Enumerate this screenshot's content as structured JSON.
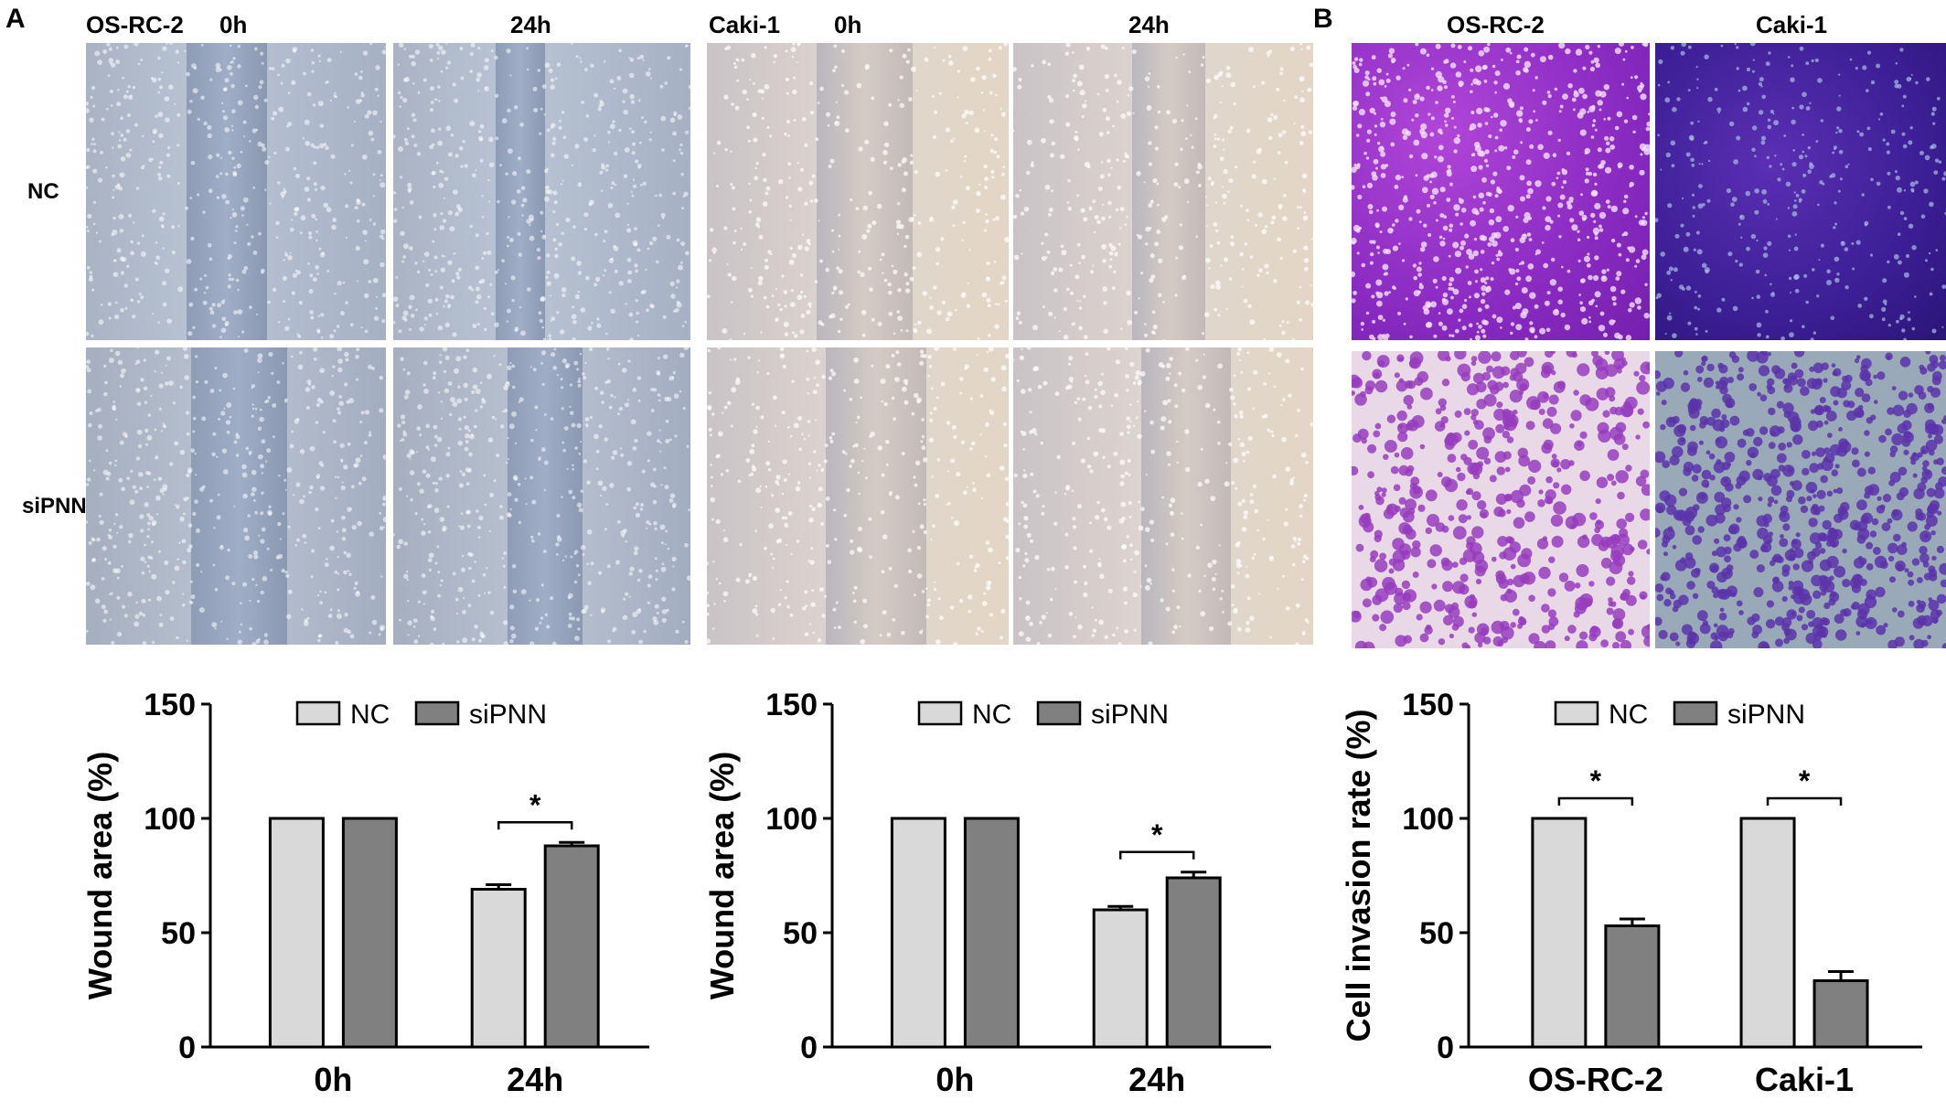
{
  "panels": {
    "a_letter": "A",
    "b_letter": "B"
  },
  "headers": {
    "a_left_cell": "OS-RC-2",
    "a_left_t0": "0h",
    "a_left_t24": "24h",
    "a_right_cell": "Caki-1",
    "a_right_t0": "0h",
    "a_right_t24": "24h",
    "b_left_cell": "OS-RC-2",
    "b_right_cell": "Caki-1"
  },
  "row_labels": {
    "nc": "NC",
    "sipnn": "siPNN"
  },
  "colors": {
    "nc_fill": "#d9d9d9",
    "sipnn_fill": "#808080",
    "stroke": "#000000"
  },
  "chart_data": [
    {
      "type": "bar",
      "categories": [
        "0h",
        "24h"
      ],
      "series": [
        {
          "name": "NC",
          "values": [
            100,
            69
          ],
          "errors": [
            0,
            2
          ]
        },
        {
          "name": "siPNN",
          "values": [
            100,
            88
          ],
          "errors": [
            0,
            1.5
          ]
        }
      ],
      "ylabel": "Wound area (%)",
      "ylim": [
        0,
        150
      ],
      "yticks": [
        "0",
        "50",
        "100",
        "150"
      ],
      "significance": [
        {
          "category": "24h",
          "label": "*"
        }
      ],
      "legend": "top"
    },
    {
      "type": "bar",
      "categories": [
        "0h",
        "24h"
      ],
      "series": [
        {
          "name": "NC",
          "values": [
            100,
            60
          ],
          "errors": [
            0,
            1.5
          ]
        },
        {
          "name": "siPNN",
          "values": [
            100,
            74
          ],
          "errors": [
            0,
            2.5
          ]
        }
      ],
      "ylabel": "Wound area (%)",
      "ylim": [
        0,
        150
      ],
      "yticks": [
        "0",
        "50",
        "100",
        "150"
      ],
      "significance": [
        {
          "category": "24h",
          "label": "*"
        }
      ],
      "legend": "top"
    },
    {
      "type": "bar",
      "categories": [
        "OS-RC-2",
        "Caki-1"
      ],
      "series": [
        {
          "name": "NC",
          "values": [
            100,
            100
          ],
          "errors": [
            0,
            0
          ]
        },
        {
          "name": "siPNN",
          "values": [
            53,
            29
          ],
          "errors": [
            3,
            4
          ]
        }
      ],
      "ylabel": "Cell invasion rate (%)",
      "ylim": [
        0,
        150
      ],
      "yticks": [
        "0",
        "50",
        "100",
        "150"
      ],
      "significance": [
        {
          "category": "OS-RC-2",
          "label": "*"
        },
        {
          "category": "Caki-1",
          "label": "*"
        }
      ],
      "legend": "top"
    }
  ]
}
